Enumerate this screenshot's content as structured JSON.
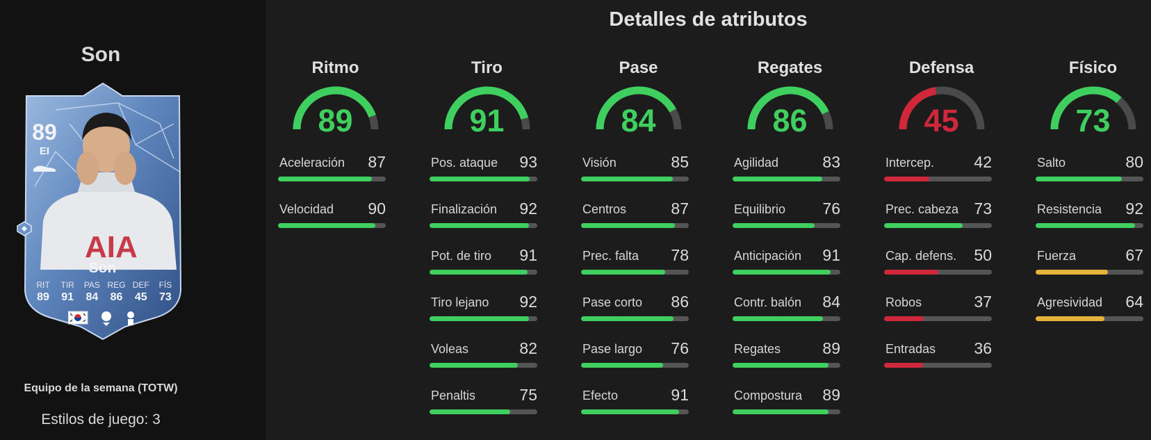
{
  "player": {
    "name": "Son",
    "card": {
      "rating": "89",
      "position": "EI",
      "name": "Son",
      "stats": [
        {
          "label": "RIT",
          "value": "89"
        },
        {
          "label": "TIR",
          "value": "91"
        },
        {
          "label": "PAS",
          "value": "84"
        },
        {
          "label": "REG",
          "value": "86"
        },
        {
          "label": "DEF",
          "value": "45"
        },
        {
          "label": "FÍS",
          "value": "73"
        }
      ],
      "shirt_text": "AIA"
    },
    "promo": "Equipo de la semana (TOTW)",
    "playstyles": "Estilos de juego: 3"
  },
  "colors": {
    "green": "#3fcf5f",
    "red": "#d0283a",
    "yellow": "#e5b23a",
    "track": "#555555"
  },
  "attributes": {
    "title": "Detalles de atributos",
    "groups": [
      {
        "name": "Ritmo",
        "value": 89,
        "color": "green",
        "items": [
          {
            "label": "Aceleración",
            "value": 87,
            "color": "green"
          },
          {
            "label": "Velocidad",
            "value": 90,
            "color": "green"
          }
        ]
      },
      {
        "name": "Tiro",
        "value": 91,
        "color": "green",
        "items": [
          {
            "label": "Pos. ataque",
            "value": 93,
            "color": "green"
          },
          {
            "label": "Finalización",
            "value": 92,
            "color": "green"
          },
          {
            "label": "Pot. de tiro",
            "value": 91,
            "color": "green"
          },
          {
            "label": "Tiro lejano",
            "value": 92,
            "color": "green"
          },
          {
            "label": "Voleas",
            "value": 82,
            "color": "green"
          },
          {
            "label": "Penaltis",
            "value": 75,
            "color": "green"
          }
        ]
      },
      {
        "name": "Pase",
        "value": 84,
        "color": "green",
        "items": [
          {
            "label": "Visión",
            "value": 85,
            "color": "green"
          },
          {
            "label": "Centros",
            "value": 87,
            "color": "green"
          },
          {
            "label": "Prec. falta",
            "value": 78,
            "color": "green"
          },
          {
            "label": "Pase corto",
            "value": 86,
            "color": "green"
          },
          {
            "label": "Pase largo",
            "value": 76,
            "color": "green"
          },
          {
            "label": "Efecto",
            "value": 91,
            "color": "green"
          }
        ]
      },
      {
        "name": "Regates",
        "value": 86,
        "color": "green",
        "items": [
          {
            "label": "Agilidad",
            "value": 83,
            "color": "green"
          },
          {
            "label": "Equilibrio",
            "value": 76,
            "color": "green"
          },
          {
            "label": "Anticipación",
            "value": 91,
            "color": "green"
          },
          {
            "label": "Contr. balón",
            "value": 84,
            "color": "green"
          },
          {
            "label": "Regates",
            "value": 89,
            "color": "green"
          },
          {
            "label": "Compostura",
            "value": 89,
            "color": "green"
          }
        ]
      },
      {
        "name": "Defensa",
        "value": 45,
        "color": "red",
        "items": [
          {
            "label": "Intercep.",
            "value": 42,
            "color": "red"
          },
          {
            "label": "Prec. cabeza",
            "value": 73,
            "color": "green"
          },
          {
            "label": "Cap. defens.",
            "value": 50,
            "color": "red"
          },
          {
            "label": "Robos",
            "value": 37,
            "color": "red"
          },
          {
            "label": "Entradas",
            "value": 36,
            "color": "red"
          }
        ]
      },
      {
        "name": "Físico",
        "value": 73,
        "color": "green",
        "items": [
          {
            "label": "Salto",
            "value": 80,
            "color": "green"
          },
          {
            "label": "Resistencia",
            "value": 92,
            "color": "green"
          },
          {
            "label": "Fuerza",
            "value": 67,
            "color": "yellow"
          },
          {
            "label": "Agresividad",
            "value": 64,
            "color": "yellow"
          }
        ]
      }
    ]
  }
}
